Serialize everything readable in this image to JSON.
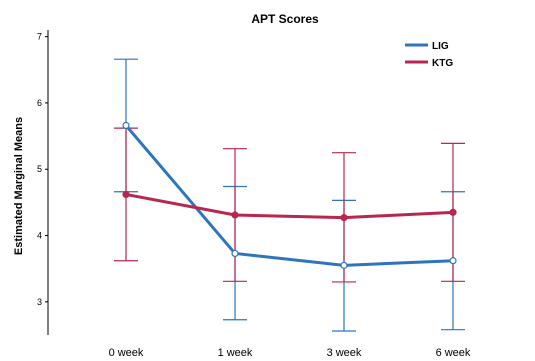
{
  "chart_data": {
    "type": "line",
    "title": "APT Scores",
    "ylabel": "Estimated Marginal Means",
    "xlabel": "",
    "categories": [
      "0 week",
      "1 week",
      "3 week",
      "6 week"
    ],
    "ylim": [
      2.5,
      7.1
    ],
    "yticks": [
      3,
      4,
      5,
      6,
      7
    ],
    "grid": false,
    "legend_position": "top-right",
    "series": [
      {
        "name": "LIG",
        "color": "#2e75c0",
        "values": [
          5.66,
          3.73,
          3.55,
          3.62
        ],
        "ci_low": [
          4.66,
          2.73,
          2.56,
          2.58
        ],
        "ci_high": [
          6.66,
          4.74,
          4.53,
          4.66
        ]
      },
      {
        "name": "KTG",
        "color": "#b8274f",
        "values": [
          4.62,
          4.31,
          4.27,
          4.35
        ],
        "ci_low": [
          3.62,
          3.31,
          3.3,
          3.31
        ],
        "ci_high": [
          5.62,
          5.31,
          5.25,
          5.39
        ]
      }
    ]
  }
}
